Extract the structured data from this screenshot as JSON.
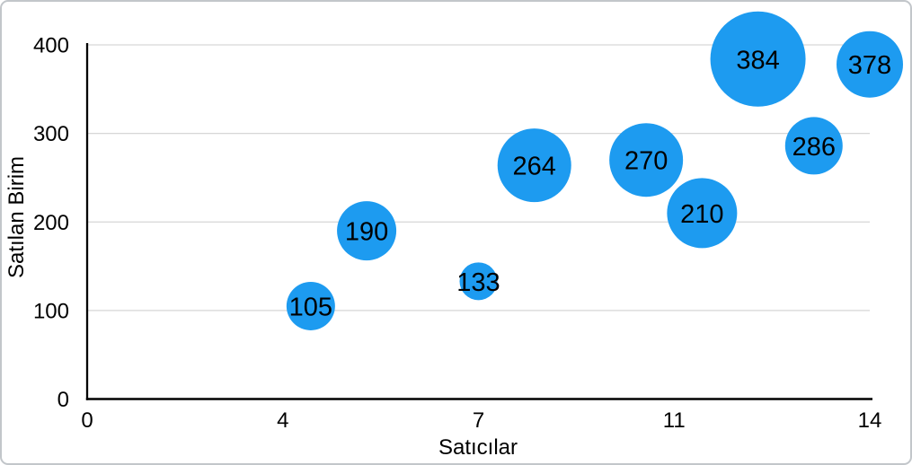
{
  "figure": {
    "background_color": "#ffffff",
    "border_color": "#c2c6ca"
  },
  "chart_data": {
    "type": "scatter",
    "subtype": "bubble",
    "title": "",
    "xlabel": "Satıcılar",
    "ylabel": "Satılan Birim",
    "xlim": [
      0,
      14
    ],
    "ylim": [
      0,
      400
    ],
    "x_tick_values": [
      0,
      3.5,
      7,
      10.5,
      14
    ],
    "x_tick_labels": [
      "0",
      "4",
      "7",
      "11",
      "14"
    ],
    "y_tick_values": [
      0,
      100,
      200,
      300,
      400
    ],
    "y_tick_labels": [
      "0",
      "100",
      "200",
      "300",
      "400"
    ],
    "grid": "horizontal-only",
    "legend": "none",
    "bubble_color": "#1d9bf0",
    "bubble_label_color": "#000000",
    "axis_color": "#000000",
    "gridline_color": "#d6d6d6",
    "points": [
      {
        "x": 4,
        "y": 105,
        "label": "105",
        "radius_px": 27
      },
      {
        "x": 5,
        "y": 190,
        "label": "190",
        "radius_px": 33
      },
      {
        "x": 7,
        "y": 133,
        "label": "133",
        "radius_px": 21
      },
      {
        "x": 8,
        "y": 264,
        "label": "264",
        "radius_px": 41
      },
      {
        "x": 10,
        "y": 270,
        "label": "270",
        "radius_px": 41
      },
      {
        "x": 11,
        "y": 210,
        "label": "210",
        "radius_px": 39
      },
      {
        "x": 12,
        "y": 384,
        "label": "384",
        "radius_px": 53
      },
      {
        "x": 13,
        "y": 286,
        "label": "286",
        "radius_px": 32
      },
      {
        "x": 14,
        "y": 378,
        "label": "378",
        "radius_px": 37
      }
    ]
  }
}
